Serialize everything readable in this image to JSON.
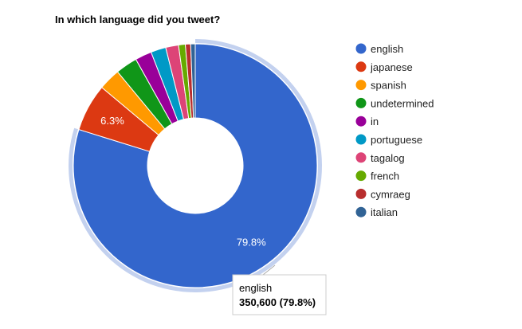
{
  "chart_data": {
    "type": "pie",
    "donut": true,
    "title": "In which language did you tweet?",
    "legend_position": "right",
    "slices": [
      {
        "label": "english",
        "percent": 79.8,
        "color": "#3366cc",
        "slice_label": "79.8%"
      },
      {
        "label": "japanese",
        "percent": 6.3,
        "color": "#dc3912",
        "slice_label": "6.3%"
      },
      {
        "label": "spanish",
        "percent": 2.9,
        "color": "#ff9900",
        "slice_label": ""
      },
      {
        "label": "undetermined",
        "percent": 2.9,
        "color": "#109618",
        "slice_label": ""
      },
      {
        "label": "in",
        "percent": 2.2,
        "color": "#990099",
        "slice_label": ""
      },
      {
        "label": "portuguese",
        "percent": 2.0,
        "color": "#0099c6",
        "slice_label": ""
      },
      {
        "label": "tagalog",
        "percent": 1.7,
        "color": "#dd4477",
        "slice_label": ""
      },
      {
        "label": "french",
        "percent": 0.9,
        "color": "#66aa00",
        "slice_label": ""
      },
      {
        "label": "cymraeg",
        "percent": 0.7,
        "color": "#b82e2e",
        "slice_label": ""
      },
      {
        "label": "italian",
        "percent": 0.6,
        "color": "#316395",
        "slice_label": ""
      }
    ],
    "highlighted": "english",
    "tooltip": {
      "label": "english",
      "value_text": "350,600 (79.8%)"
    }
  }
}
